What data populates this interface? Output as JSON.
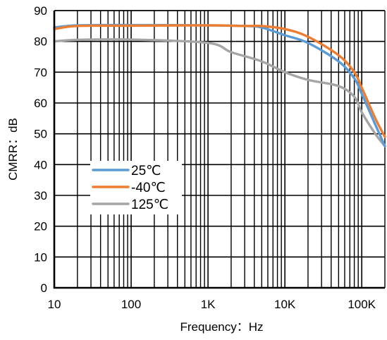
{
  "chart_data": {
    "type": "line",
    "title": "",
    "xlabel": "Frequency：Hz",
    "ylabel": "CMRR：dB",
    "xscale": "log",
    "xlim": [
      10,
      200000
    ],
    "ylim": [
      0,
      90
    ],
    "grid": true,
    "legend_position": "center-left",
    "x_ticks": [
      10,
      100,
      1000,
      10000,
      100000
    ],
    "x_tick_labels": [
      "10",
      "100",
      "1K",
      "10K",
      "100K"
    ],
    "y_ticks": [
      0,
      10,
      20,
      30,
      40,
      50,
      60,
      70,
      80,
      90
    ],
    "y_tick_labels": [
      "0",
      "10",
      "20",
      "30",
      "40",
      "50",
      "60",
      "70",
      "80",
      "90"
    ],
    "series": [
      {
        "name": "25℃",
        "color": "#5B9BD5",
        "points": [
          [
            10,
            84.5
          ],
          [
            20,
            85.2
          ],
          [
            100,
            85.3
          ],
          [
            1000,
            85.2
          ],
          [
            3000,
            85.0
          ],
          [
            5000,
            84.5
          ],
          [
            10000,
            82.0
          ],
          [
            20000,
            79.5
          ],
          [
            50000,
            73.5
          ],
          [
            80000,
            68.0
          ],
          [
            100000,
            63.0
          ],
          [
            150000,
            53.0
          ],
          [
            200000,
            46.0
          ]
        ]
      },
      {
        "name": "-40℃",
        "color": "#ED7D31",
        "points": [
          [
            10,
            84.0
          ],
          [
            20,
            85.0
          ],
          [
            100,
            85.1
          ],
          [
            1000,
            85.2
          ],
          [
            3000,
            85.0
          ],
          [
            5000,
            85.0
          ],
          [
            10000,
            84.0
          ],
          [
            20000,
            81.5
          ],
          [
            50000,
            75.5
          ],
          [
            80000,
            70.0
          ],
          [
            100000,
            65.0
          ],
          [
            150000,
            55.0
          ],
          [
            200000,
            49.0
          ]
        ]
      },
      {
        "name": "125℃",
        "color": "#A5A5A5",
        "points": [
          [
            10,
            80.0
          ],
          [
            20,
            80.5
          ],
          [
            100,
            80.6
          ],
          [
            1000,
            79.5
          ],
          [
            2000,
            76.5
          ],
          [
            5000,
            73.5
          ],
          [
            10000,
            70.0
          ],
          [
            20000,
            67.5
          ],
          [
            50000,
            65.5
          ],
          [
            80000,
            62.0
          ],
          [
            100000,
            57.0
          ],
          [
            150000,
            50.0
          ],
          [
            200000,
            46.0
          ]
        ]
      }
    ]
  }
}
